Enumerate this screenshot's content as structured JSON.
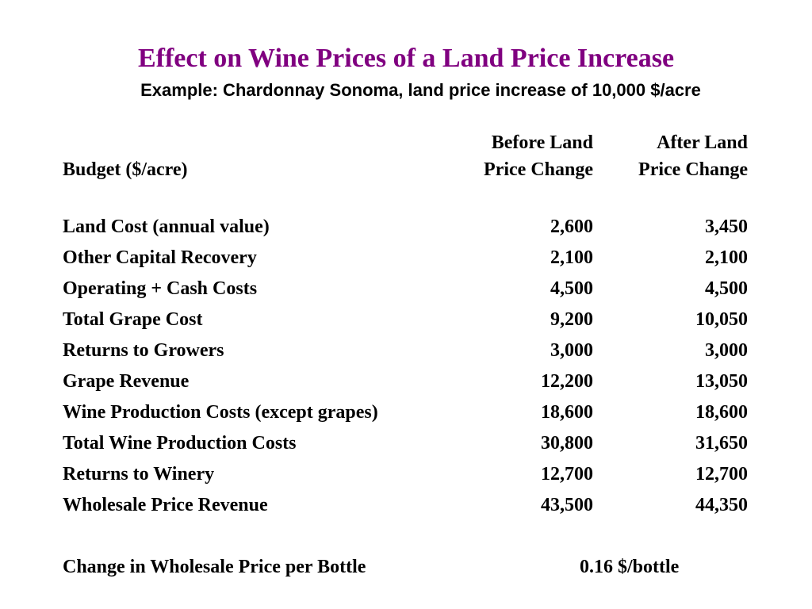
{
  "title": "Effect on Wine Prices of a Land Price Increase",
  "subtitle": "Example: Chardonnay Sonoma, land price increase of 10,000 $/acre",
  "colors": {
    "title": "#800080",
    "text": "#000000",
    "background": "#ffffff"
  },
  "table": {
    "row_header": "Budget ($/acre)",
    "columns": [
      {
        "line1": "Before Land",
        "line2": "Price Change"
      },
      {
        "line1": "After Land",
        "line2": "Price Change"
      }
    ],
    "rows": [
      {
        "label": "Land Cost (annual value)",
        "before": "2,600",
        "after": "3,450"
      },
      {
        "label": "Other Capital Recovery",
        "before": "2,100",
        "after": "2,100"
      },
      {
        "label": "Operating + Cash Costs",
        "before": "4,500",
        "after": "4,500"
      },
      {
        "label": "Total Grape Cost",
        "before": "9,200",
        "after": "10,050"
      },
      {
        "label": "Returns to Growers",
        "before": "3,000",
        "after": "3,000"
      },
      {
        "label": "Grape Revenue",
        "before": "12,200",
        "after": "13,050"
      },
      {
        "label": "Wine Production Costs (except grapes)",
        "before": "18,600",
        "after": "18,600"
      },
      {
        "label": "Total Wine Production Costs",
        "before": "30,800",
        "after": "31,650"
      },
      {
        "label": "Returns to Winery",
        "before": "12,700",
        "after": "12,700"
      },
      {
        "label": "Wholesale Price Revenue",
        "before": "43,500",
        "after": "44,350"
      }
    ]
  },
  "summary": {
    "label": "Change in Wholesale Price per Bottle",
    "value": "0.16 $/bottle"
  }
}
